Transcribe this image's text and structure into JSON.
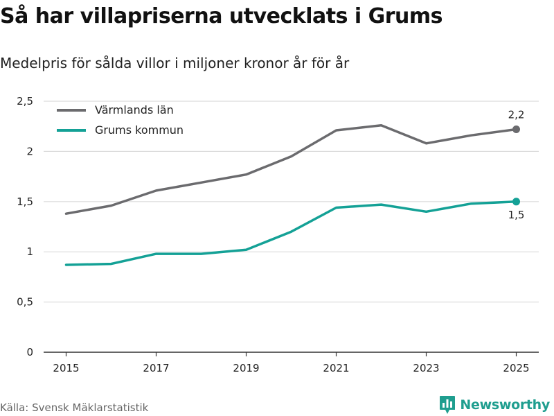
{
  "title": "Så har villapriserna utvecklats i Grums",
  "subtitle": "Medelpris för sålda villor i miljoner kronor år för år",
  "source": "Källa: Svensk Mäklarstatistik",
  "brand": {
    "name": "Newsworthy",
    "icon": "bar-chart-icon",
    "color": "#1f9e8f"
  },
  "chart_data": {
    "type": "line",
    "x": [
      2015,
      2016,
      2017,
      2018,
      2019,
      2020,
      2021,
      2022,
      2023,
      2024,
      2025
    ],
    "x_tick_labels": [
      "2015",
      "2017",
      "2019",
      "2021",
      "2023",
      "2025"
    ],
    "y_tick_labels": [
      "0",
      "0,5",
      "1",
      "1,5",
      "2",
      "2,5"
    ],
    "y_ticks": [
      0,
      0.5,
      1,
      1.5,
      2,
      2.5
    ],
    "ylim": [
      0,
      2.5
    ],
    "xlim": [
      2014.5,
      2025.5
    ],
    "grid": true,
    "legend_placement": "top-left",
    "series": [
      {
        "name": "Värmlands län",
        "color": "#6b6b6e",
        "values": [
          1.38,
          1.46,
          1.61,
          1.69,
          1.77,
          1.95,
          2.21,
          2.26,
          2.08,
          2.16,
          2.22
        ],
        "end_label": "2,2"
      },
      {
        "name": "Grums kommun",
        "color": "#14a196",
        "values": [
          0.87,
          0.88,
          0.98,
          0.98,
          1.02,
          1.2,
          1.44,
          1.47,
          1.4,
          1.48,
          1.5
        ],
        "end_label": "1,5"
      }
    ]
  }
}
